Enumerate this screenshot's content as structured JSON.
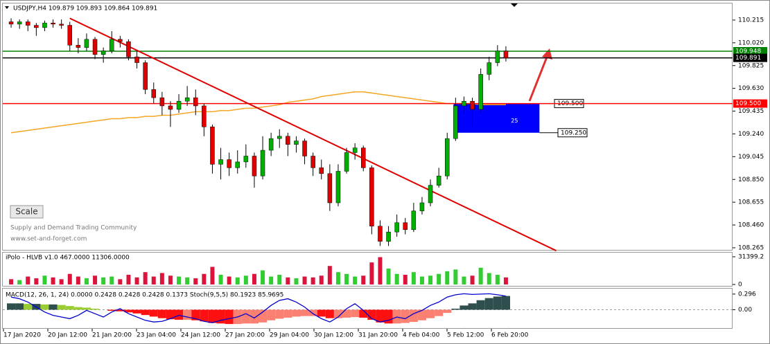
{
  "chart_data": [
    {
      "type": "candlestick",
      "title": "USDJPY,H4  109.879 109.893 109.864 109.891",
      "annotations": [
        "Scale",
        "Supply and Demand Trading Community",
        "www.set-and-forget.com"
      ],
      "x_labels": [
        "17 Jan 2020",
        "20 Jan 12:00",
        "21 Jan 20:00",
        "23 Jan 04:00",
        "24 Jan 12:00",
        "27 Jan 20:00",
        "29 Jan 04:00",
        "30 Jan 12:00",
        "31 Jan 20:00",
        "4 Feb 04:00",
        "5 Feb 12:00",
        "6 Feb 20:00"
      ],
      "ylim": [
        108.241,
        110.357
      ],
      "yticks": [
        110.215,
        {
          "value": 110.02,
          "label": "110.020"
        },
        109.825,
        {
          "value": 109.63,
          "label": "109.630"
        },
        109.435,
        {
          "value": 109.24,
          "label": "109.240"
        },
        109.045,
        {
          "value": 108.85,
          "label": "108.850"
        },
        108.655,
        {
          "value": 108.46,
          "label": "108.460"
        },
        108.265
      ],
      "up_color": "#00b000",
      "down_color": "#e00000",
      "ohlc": [
        [
          110.2,
          110.23,
          110.15,
          110.18
        ],
        [
          110.18,
          110.22,
          110.14,
          110.2
        ],
        [
          110.2,
          110.22,
          110.12,
          110.17
        ],
        [
          110.17,
          110.19,
          110.08,
          110.15
        ],
        [
          110.15,
          110.21,
          110.12,
          110.19
        ],
        [
          110.19,
          110.22,
          110.15,
          110.18
        ],
        [
          110.18,
          110.22,
          110.14,
          110.17
        ],
        [
          110.17,
          110.2,
          109.95,
          110.0
        ],
        [
          110.0,
          110.06,
          109.93,
          109.98
        ],
        [
          109.98,
          110.1,
          109.95,
          110.05
        ],
        [
          110.05,
          110.07,
          109.88,
          109.92
        ],
        [
          109.92,
          109.98,
          109.85,
          109.95
        ],
        [
          109.95,
          110.12,
          109.93,
          110.05
        ],
        [
          110.05,
          110.08,
          109.98,
          110.03
        ],
        [
          110.03,
          110.05,
          109.87,
          109.9
        ],
        [
          109.9,
          109.95,
          109.8,
          109.85
        ],
        [
          109.85,
          109.87,
          109.58,
          109.62
        ],
        [
          109.62,
          109.68,
          109.5,
          109.55
        ],
        [
          109.55,
          109.6,
          109.4,
          109.48
        ],
        [
          109.48,
          109.52,
          109.3,
          109.45
        ],
        [
          109.45,
          109.58,
          109.42,
          109.52
        ],
        [
          109.52,
          109.65,
          109.48,
          109.55
        ],
        [
          109.55,
          109.62,
          109.4,
          109.48
        ],
        [
          109.48,
          109.5,
          109.22,
          109.3
        ],
        [
          109.3,
          109.32,
          108.9,
          108.98
        ],
        [
          108.98,
          109.12,
          108.85,
          109.02
        ],
        [
          109.02,
          109.08,
          108.88,
          108.95
        ],
        [
          108.95,
          109.1,
          108.9,
          109.0
        ],
        [
          109.0,
          109.15,
          108.95,
          109.05
        ],
        [
          109.05,
          109.08,
          108.78,
          108.88
        ],
        [
          108.88,
          109.22,
          108.85,
          109.1
        ],
        [
          109.1,
          109.25,
          109.05,
          109.2
        ],
        [
          109.2,
          109.28,
          109.12,
          109.22
        ],
        [
          109.22,
          109.25,
          109.05,
          109.15
        ],
        [
          109.15,
          109.22,
          109.08,
          109.18
        ],
        [
          109.18,
          109.2,
          108.98,
          109.05
        ],
        [
          109.05,
          109.08,
          108.88,
          108.95
        ],
        [
          108.95,
          109.02,
          108.85,
          108.9
        ],
        [
          108.9,
          108.98,
          108.58,
          108.65
        ],
        [
          108.65,
          108.98,
          108.62,
          108.92
        ],
        [
          108.92,
          109.12,
          108.9,
          109.08
        ],
        [
          109.08,
          109.16,
          109.02,
          109.12
        ],
        [
          109.12,
          109.14,
          108.92,
          108.95
        ],
        [
          108.95,
          108.97,
          108.38,
          108.45
        ],
        [
          108.45,
          108.5,
          108.28,
          108.32
        ],
        [
          108.32,
          108.45,
          108.28,
          108.4
        ],
        [
          108.4,
          108.55,
          108.36,
          108.48
        ],
        [
          108.48,
          108.52,
          108.38,
          108.42
        ],
        [
          108.42,
          108.65,
          108.4,
          108.58
        ],
        [
          108.58,
          108.7,
          108.55,
          108.65
        ],
        [
          108.65,
          108.85,
          108.62,
          108.8
        ],
        [
          108.8,
          108.95,
          108.78,
          108.88
        ],
        [
          108.88,
          109.25,
          108.85,
          109.2
        ],
        [
          109.2,
          109.55,
          109.18,
          109.48
        ],
        [
          109.48,
          109.56,
          109.42,
          109.52
        ],
        [
          109.52,
          109.55,
          109.3,
          109.45
        ],
        [
          109.45,
          109.8,
          109.42,
          109.75
        ],
        [
          109.75,
          109.9,
          109.7,
          109.85
        ],
        [
          109.85,
          110.0,
          109.82,
          109.95
        ],
        [
          109.95,
          109.99,
          109.86,
          109.89
        ]
      ],
      "ma": {
        "color": "#f5a623",
        "values": [
          109.25,
          109.26,
          109.27,
          109.28,
          109.29,
          109.3,
          109.31,
          109.32,
          109.33,
          109.34,
          109.35,
          109.36,
          109.37,
          109.37,
          109.38,
          109.38,
          109.39,
          109.39,
          109.4,
          109.4,
          109.41,
          109.42,
          109.43,
          109.43,
          109.43,
          109.44,
          109.44,
          109.45,
          109.46,
          109.46,
          109.47,
          109.48,
          109.49,
          109.51,
          109.52,
          109.53,
          109.54,
          109.56,
          109.57,
          109.58,
          109.59,
          109.6,
          109.6,
          109.59,
          109.58,
          109.57,
          109.56,
          109.55,
          109.54,
          109.53,
          109.52,
          109.51,
          109.5,
          109.5,
          109.5,
          109.5,
          109.49,
          109.49,
          109.49,
          109.49
        ]
      },
      "trendline": {
        "color": "#e00000",
        "from": [
          7,
          110.23
        ],
        "to": [
          65,
          108.24
        ]
      },
      "levels": [
        {
          "value": 109.948,
          "label": "109.948",
          "color": "#008000"
        },
        {
          "value": 109.891,
          "label": "109.891",
          "color": "#000000"
        },
        {
          "value": 109.5,
          "label": "109.500",
          "color": "#ff0000"
        }
      ],
      "zone": {
        "from": 53,
        "to": 63,
        "high": {
          "value": 109.5,
          "label": "109.500"
        },
        "low": {
          "value": 109.25,
          "label": "109.250"
        },
        "text": 25,
        "color": "#0000ff"
      }
    },
    {
      "type": "bar",
      "title": "iPolo - HLVB v1.0 467.0000 11306.0000",
      "ylim": [
        0,
        31399.2
      ],
      "yticks": [
        31399.2,
        0
      ],
      "values": [
        6000,
        5000,
        9000,
        7000,
        10000,
        8000,
        6000,
        12000,
        9000,
        7000,
        10000,
        8000,
        9000,
        6000,
        11000,
        8000,
        14000,
        9000,
        13000,
        10000,
        9000,
        8000,
        7000,
        12000,
        20000,
        11000,
        9000,
        8000,
        10000,
        12000,
        16000,
        9000,
        11000,
        8000,
        7000,
        9000,
        8000,
        10000,
        21000,
        14000,
        12000,
        9000,
        10000,
        25000,
        31000,
        18000,
        12000,
        11000,
        14000,
        9000,
        10000,
        12000,
        15000,
        17000,
        9000,
        10000,
        19000,
        13000,
        11000,
        8000
      ]
    },
    {
      "type": "macd",
      "title": "MACD(12, 26, 1, 24) 0.0000 0.2428 0.2428 0.2428 0.1373  Stoch(9,5,5) 80.1923 85.9695",
      "ylim": [
        -0.347,
        0.399
      ],
      "yticks": [
        0.296,
        {
          "value": 0,
          "label": "0.00"
        }
      ],
      "y2lim": [
        0,
        100
      ],
      "hist_colors": {
        "pos_up": "#2f4f4f",
        "pos_down": "#9acd32",
        "neg_up": "#fa8072",
        "neg_down": "#ff1010"
      },
      "series": [
        {
          "values": [
            0.12,
            0.12,
            0.11,
            0.11,
            0.1,
            0.1,
            0.09,
            0.07,
            0.05,
            0.04,
            0.02,
            0.0,
            -0.02,
            -0.03,
            -0.05,
            -0.07,
            -0.1,
            -0.13,
            -0.16,
            -0.18,
            -0.19,
            -0.19,
            -0.2,
            -0.22,
            -0.25,
            -0.26,
            -0.27,
            -0.27,
            -0.26,
            -0.26,
            -0.24,
            -0.2,
            -0.17,
            -0.15,
            -0.13,
            -0.12,
            -0.12,
            -0.13,
            -0.16,
            -0.16,
            -0.15,
            -0.14,
            -0.15,
            -0.19,
            -0.24,
            -0.26,
            -0.26,
            -0.25,
            -0.23,
            -0.2,
            -0.16,
            -0.12,
            -0.06,
            0.02,
            0.08,
            0.12,
            0.18,
            0.22,
            0.25,
            0.26
          ]
        },
        {
          "color": "#0000cd",
          "axis": "y2",
          "values": [
            85,
            80,
            70,
            55,
            40,
            30,
            25,
            20,
            30,
            45,
            35,
            25,
            40,
            50,
            35,
            25,
            15,
            10,
            12,
            20,
            30,
            25,
            20,
            12,
            8,
            15,
            20,
            25,
            35,
            22,
            40,
            60,
            75,
            80,
            70,
            55,
            35,
            20,
            10,
            25,
            50,
            65,
            45,
            20,
            10,
            15,
            25,
            20,
            35,
            45,
            60,
            70,
            85,
            92,
            95,
            93,
            94,
            95,
            92,
            88
          ]
        }
      ]
    }
  ]
}
